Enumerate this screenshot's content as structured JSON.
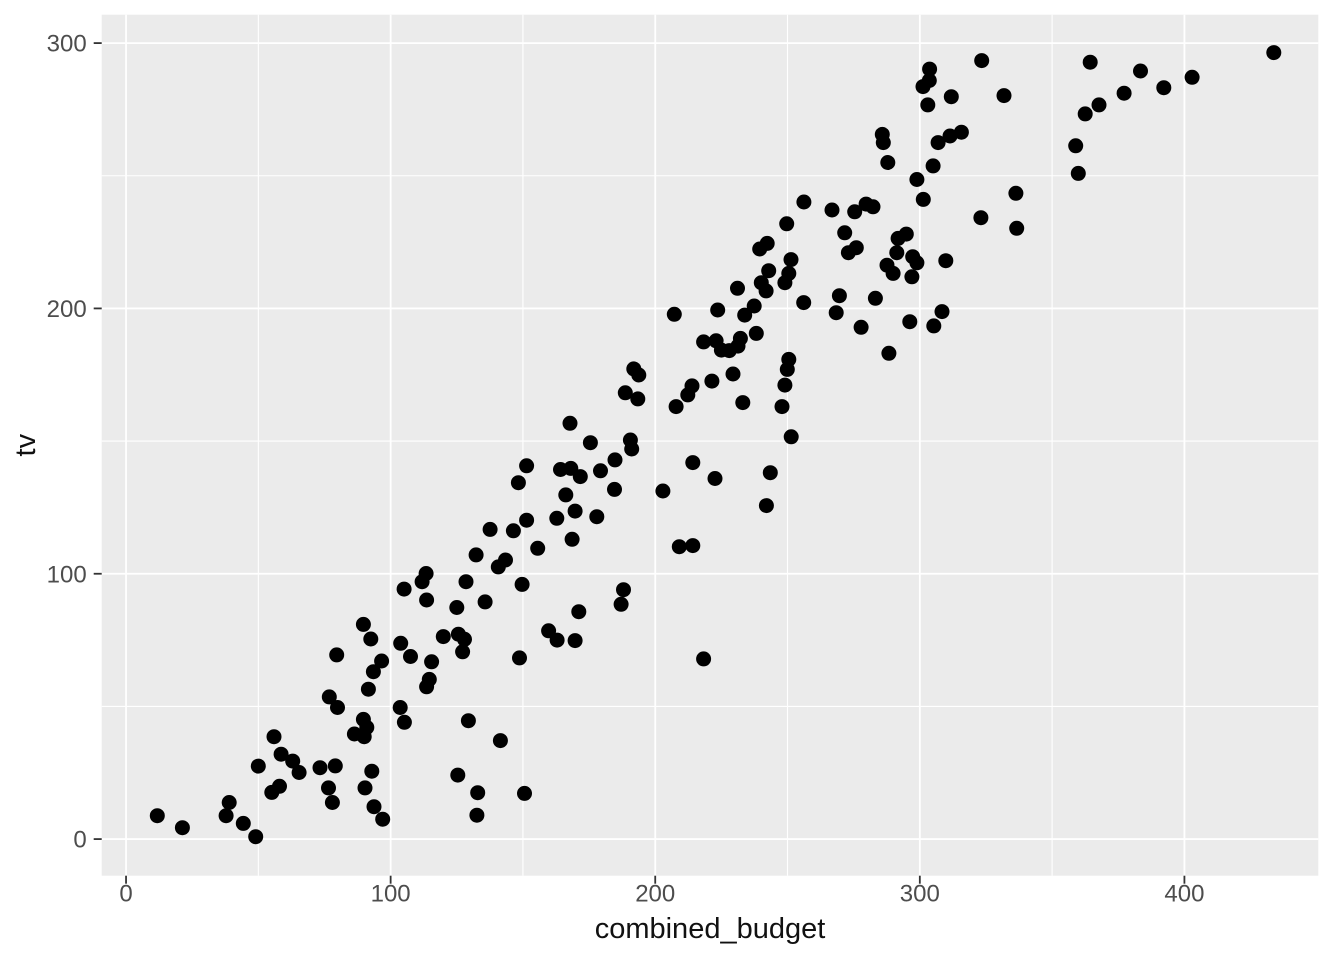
{
  "chart_data": {
    "type": "scatter",
    "title": "",
    "xlabel": "combined_budget",
    "ylabel": "tv",
    "x_ticks": [
      0,
      100,
      200,
      300,
      400
    ],
    "y_ticks": [
      0,
      100,
      200,
      300
    ],
    "x_minor_gridlines": [
      50,
      150,
      250,
      350
    ],
    "y_minor_gridlines": [
      50,
      150,
      250
    ],
    "xlim": [
      -9.2,
      450.6
    ],
    "ylim": [
      -13.8,
      310.7
    ],
    "grid": "on",
    "legend_position": "none",
    "theme": {
      "panel_bg": "#EBEBEB",
      "grid_color": "#FFFFFF",
      "point_color": "#000000",
      "tick_label_color": "#4D4D4D",
      "axis_title_color": "#111111",
      "tick_mark_color": "#333333",
      "outer_bg": "#FFFFFF"
    },
    "points": [
      [
        364.4,
        292.8
      ],
      [
        433.8,
        296.4
      ],
      [
        383.4,
        289.5
      ],
      [
        402.9,
        287.1
      ],
      [
        392.2,
        283.2
      ],
      [
        377.2,
        281.1
      ],
      [
        367.7,
        276.7
      ],
      [
        362.5,
        273.3
      ],
      [
        358.9,
        261.3
      ],
      [
        359.9,
        250.9
      ],
      [
        303.7,
        290.2
      ],
      [
        301.2,
        283.6
      ],
      [
        303.6,
        285.9
      ],
      [
        311.9,
        279.8
      ],
      [
        331.8,
        280.2
      ],
      [
        323.4,
        293.4
      ],
      [
        303.0,
        276.7
      ],
      [
        285.8,
        265.6
      ],
      [
        286.2,
        262.5
      ],
      [
        306.9,
        262.5
      ],
      [
        311.4,
        265.0
      ],
      [
        315.7,
        266.4
      ],
      [
        287.9,
        255.0
      ],
      [
        305.0,
        253.7
      ],
      [
        298.9,
        248.6
      ],
      [
        336.3,
        243.4
      ],
      [
        301.3,
        241.1
      ],
      [
        256.2,
        240.1
      ],
      [
        266.8,
        237.1
      ],
      [
        275.4,
        236.4
      ],
      [
        279.7,
        239.3
      ],
      [
        282.3,
        238.3
      ],
      [
        323.1,
        234.2
      ],
      [
        249.7,
        231.9
      ],
      [
        336.6,
        230.2
      ],
      [
        271.6,
        228.5
      ],
      [
        242.3,
        224.5
      ],
      [
        239.5,
        222.4
      ],
      [
        273.0,
        221.0
      ],
      [
        276.0,
        222.9
      ],
      [
        291.8,
        226.4
      ],
      [
        294.9,
        228.0
      ],
      [
        291.3,
        221.0
      ],
      [
        297.3,
        219.5
      ],
      [
        298.9,
        217.2
      ],
      [
        251.3,
        218.4
      ],
      [
        287.6,
        216.3
      ],
      [
        250.5,
        213.2
      ],
      [
        249.0,
        209.7
      ],
      [
        242.9,
        214.2
      ],
      [
        240.1,
        209.7
      ],
      [
        241.9,
        206.6
      ],
      [
        231.1,
        207.6
      ],
      [
        289.9,
        213.2
      ],
      [
        297.0,
        211.9
      ],
      [
        309.8,
        218.0
      ],
      [
        256.1,
        202.2
      ],
      [
        269.6,
        204.8
      ],
      [
        283.2,
        203.8
      ],
      [
        237.4,
        200.9
      ],
      [
        233.8,
        197.5
      ],
      [
        268.4,
        198.4
      ],
      [
        238.2,
        190.6
      ],
      [
        232.2,
        188.7
      ],
      [
        231.3,
        185.8
      ],
      [
        228.0,
        184.1
      ],
      [
        225.0,
        184.3
      ],
      [
        250.5,
        180.8
      ],
      [
        249.9,
        177.0
      ],
      [
        249.0,
        171.1
      ],
      [
        288.3,
        183.1
      ],
      [
        229.4,
        175.3
      ],
      [
        233.1,
        164.5
      ],
      [
        247.9,
        163.0
      ],
      [
        251.4,
        151.6
      ],
      [
        243.5,
        138.1
      ],
      [
        242.0,
        125.7
      ],
      [
        277.8,
        192.9
      ],
      [
        296.2,
        195.0
      ],
      [
        308.4,
        198.8
      ],
      [
        305.3,
        193.4
      ],
      [
        207.2,
        197.8
      ],
      [
        223.6,
        199.4
      ],
      [
        218.3,
        187.4
      ],
      [
        223.0,
        187.8
      ],
      [
        191.9,
        177.2
      ],
      [
        193.8,
        174.9
      ],
      [
        188.7,
        168.2
      ],
      [
        213.9,
        170.8
      ],
      [
        212.3,
        167.4
      ],
      [
        221.4,
        172.6
      ],
      [
        193.4,
        165.9
      ],
      [
        207.9,
        163.0
      ],
      [
        167.8,
        156.7
      ],
      [
        175.5,
        149.4
      ],
      [
        190.6,
        150.4
      ],
      [
        191.1,
        147.0
      ],
      [
        184.8,
        142.9
      ],
      [
        214.2,
        141.9
      ],
      [
        151.4,
        140.7
      ],
      [
        164.2,
        139.3
      ],
      [
        168.1,
        139.7
      ],
      [
        171.7,
        136.6
      ],
      [
        179.3,
        138.8
      ],
      [
        222.6,
        135.9
      ],
      [
        148.3,
        134.3
      ],
      [
        184.6,
        131.8
      ],
      [
        202.9,
        131.2
      ],
      [
        166.2,
        129.7
      ],
      [
        169.7,
        123.6
      ],
      [
        151.4,
        120.2
      ],
      [
        162.8,
        120.9
      ],
      [
        177.9,
        121.5
      ],
      [
        137.6,
        116.7
      ],
      [
        146.4,
        116.2
      ],
      [
        168.6,
        113.0
      ],
      [
        155.6,
        109.6
      ],
      [
        132.3,
        107.1
      ],
      [
        209.1,
        110.2
      ],
      [
        214.2,
        110.6
      ],
      [
        143.4,
        105.2
      ],
      [
        140.7,
        102.6
      ],
      [
        113.4,
        100.1
      ],
      [
        111.9,
        97.0
      ],
      [
        128.5,
        97.0
      ],
      [
        149.7,
        96.0
      ],
      [
        188.0,
        94.0
      ],
      [
        105.1,
        94.2
      ],
      [
        89.7,
        80.9
      ],
      [
        92.5,
        75.4
      ],
      [
        103.8,
        73.8
      ],
      [
        79.6,
        69.4
      ],
      [
        96.6,
        67.1
      ],
      [
        93.5,
        63.1
      ],
      [
        107.5,
        68.8
      ],
      [
        91.6,
        56.5
      ],
      [
        76.8,
        53.6
      ],
      [
        79.9,
        49.6
      ],
      [
        103.6,
        49.6
      ],
      [
        105.2,
        44.0
      ],
      [
        89.7,
        45.1
      ],
      [
        91.0,
        42.1
      ],
      [
        86.3,
        39.6
      ],
      [
        90.0,
        38.6
      ],
      [
        55.9,
        38.6
      ],
      [
        58.6,
        32.0
      ],
      [
        63.0,
        29.4
      ],
      [
        65.4,
        25.1
      ],
      [
        50.0,
        27.5
      ],
      [
        73.3,
        26.9
      ],
      [
        79.1,
        27.6
      ],
      [
        92.9,
        25.6
      ],
      [
        76.5,
        19.3
      ],
      [
        78.0,
        13.8
      ],
      [
        90.3,
        19.3
      ],
      [
        55.1,
        17.6
      ],
      [
        58.0,
        19.9
      ],
      [
        39.0,
        13.8
      ],
      [
        93.7,
        12.2
      ],
      [
        37.8,
        8.8
      ],
      [
        97.0,
        7.5
      ],
      [
        11.8,
        8.8
      ],
      [
        21.3,
        4.3
      ],
      [
        44.3,
        5.9
      ],
      [
        49.0,
        0.9
      ],
      [
        113.6,
        90.1
      ],
      [
        125.0,
        87.3
      ],
      [
        135.7,
        89.4
      ],
      [
        187.1,
        88.5
      ],
      [
        171.1,
        85.7
      ],
      [
        159.7,
        78.5
      ],
      [
        162.9,
        75.0
      ],
      [
        169.7,
        74.8
      ],
      [
        119.9,
        76.3
      ],
      [
        125.6,
        77.2
      ],
      [
        127.9,
        75.3
      ],
      [
        127.2,
        70.6
      ],
      [
        148.7,
        68.3
      ],
      [
        115.5,
        66.8
      ],
      [
        218.3,
        67.9
      ],
      [
        114.6,
        60.2
      ],
      [
        113.6,
        57.4
      ],
      [
        129.4,
        44.6
      ],
      [
        141.5,
        37.1
      ],
      [
        125.4,
        24.1
      ],
      [
        132.9,
        17.5
      ],
      [
        150.6,
        17.2
      ],
      [
        132.6,
        9.0
      ]
    ]
  }
}
